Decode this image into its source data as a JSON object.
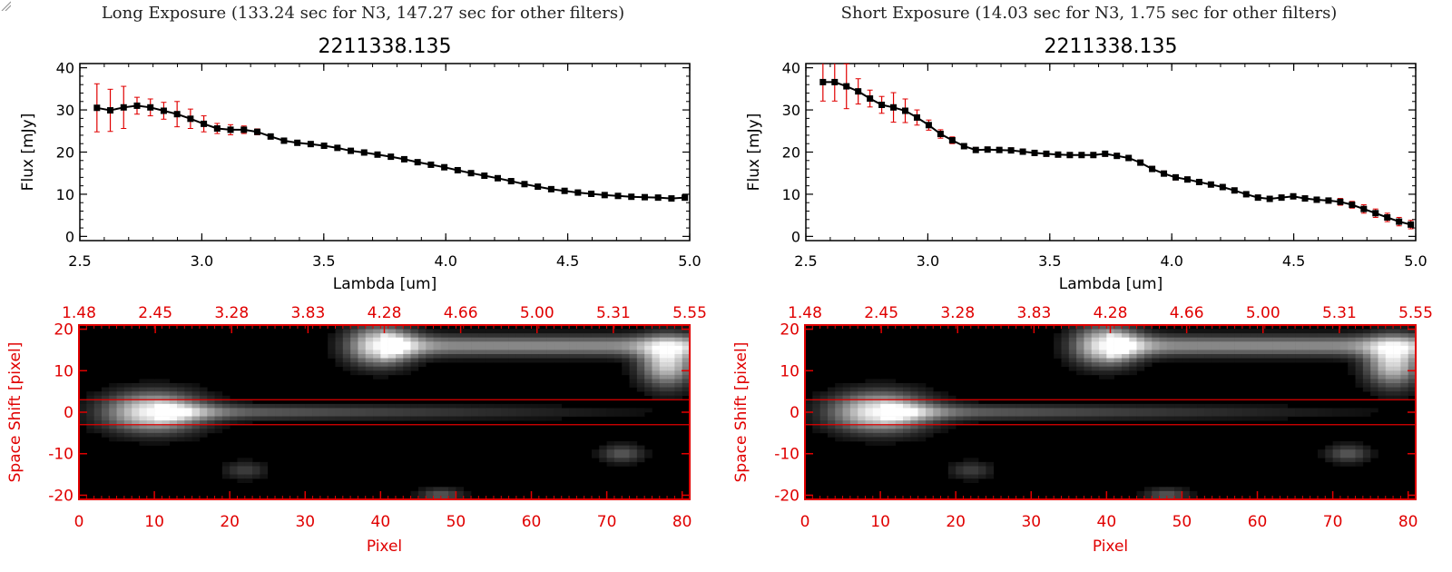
{
  "panels": [
    {
      "id": "left",
      "exposure_title": "Long Exposure (133.24 sec for N3, 147.27 sec for other filters)",
      "plot_title": "2211338.135",
      "spectrum_series": [
        30.5,
        29.9,
        30.6,
        31.0,
        30.6,
        29.8,
        29.0,
        27.9,
        26.7,
        25.6,
        25.3,
        25.3,
        24.8,
        23.7,
        22.7,
        22.2,
        21.9,
        21.5,
        21.0,
        20.3,
        19.9,
        19.4,
        18.9,
        18.3,
        17.6,
        17.0,
        16.4,
        15.7,
        15.0,
        14.4,
        13.8,
        13.1,
        12.4,
        11.8,
        11.2,
        10.8,
        10.4,
        10.1,
        9.8,
        9.6,
        9.4,
        9.3,
        9.2,
        9.0,
        9.2
      ],
      "spectrum_errors": [
        5.7,
        5.0,
        5.0,
        2.0,
        2.0,
        2.0,
        3.0,
        2.3,
        1.9,
        1.2,
        1.2,
        0.9,
        0.7,
        0.6,
        0.5,
        0.4,
        0.4,
        0.4,
        0.4,
        0.4,
        0.4,
        0.4,
        0.4,
        0.4,
        0.4,
        0.4,
        0.4,
        0.4,
        0.4,
        0.4,
        0.4,
        0.4,
        0.4,
        0.4,
        0.4,
        0.4,
        0.4,
        0.4,
        0.4,
        0.4,
        0.4,
        0.4,
        0.4,
        0.4,
        0.4
      ],
      "image_sources": [
        {
          "x": 10,
          "y": 0,
          "sx": 4.5,
          "sy": 3.2,
          "amp": 1.0
        },
        {
          "x": 40,
          "y": 16,
          "sx": 3.0,
          "sy": 3.2,
          "amp": 1.0
        },
        {
          "x": 78,
          "y": 12,
          "sx": 2.5,
          "sy": 4.0,
          "amp": 0.85
        },
        {
          "x": 72,
          "y": -10,
          "sx": 2.0,
          "sy": 1.5,
          "amp": 0.35
        },
        {
          "x": 48,
          "y": -20,
          "sx": 2.0,
          "sy": 1.2,
          "amp": 0.35
        },
        {
          "x": 22,
          "y": -14,
          "sx": 2.0,
          "sy": 1.5,
          "amp": 0.25
        }
      ]
    },
    {
      "id": "right",
      "exposure_title": "Short Exposure (14.03 sec for N3, 1.75 sec for other filters)",
      "plot_title": "2211338.135",
      "spectrum_series": [
        36.6,
        36.6,
        35.6,
        34.4,
        32.7,
        31.2,
        30.6,
        29.8,
        28.2,
        26.4,
        24.3,
        22.8,
        21.4,
        20.5,
        20.6,
        20.5,
        20.4,
        20.1,
        19.8,
        19.6,
        19.4,
        19.3,
        19.3,
        19.3,
        19.6,
        19.1,
        18.6,
        17.5,
        16.0,
        14.9,
        14.0,
        13.5,
        12.9,
        12.3,
        11.7,
        10.9,
        10.0,
        9.2,
        8.9,
        9.2,
        9.5,
        9.0,
        8.7,
        8.5,
        8.2,
        7.5,
        6.5,
        5.5,
        4.5,
        3.5,
        2.8
      ],
      "spectrum_errors": [
        4.5,
        4.5,
        5.3,
        3.0,
        2.0,
        2.0,
        3.5,
        2.8,
        1.8,
        1.2,
        1.0,
        0.8,
        0.6,
        0.6,
        0.6,
        0.6,
        0.6,
        0.6,
        0.6,
        0.6,
        0.6,
        0.6,
        0.6,
        0.6,
        0.6,
        0.6,
        0.6,
        0.6,
        0.6,
        0.6,
        0.6,
        0.6,
        0.6,
        0.6,
        0.6,
        0.6,
        0.6,
        0.6,
        0.6,
        0.6,
        0.6,
        0.6,
        0.6,
        0.6,
        0.8,
        0.8,
        1.0,
        1.0,
        1.0,
        1.0,
        1.0
      ],
      "image_sources": [
        {
          "x": 10,
          "y": 0,
          "sx": 4.5,
          "sy": 3.2,
          "amp": 1.0
        },
        {
          "x": 40,
          "y": 16,
          "sx": 3.0,
          "sy": 3.2,
          "amp": 1.0
        },
        {
          "x": 78,
          "y": 12,
          "sx": 2.5,
          "sy": 4.0,
          "amp": 0.85
        },
        {
          "x": 72,
          "y": -10,
          "sx": 2.0,
          "sy": 1.5,
          "amp": 0.35
        },
        {
          "x": 48,
          "y": -20,
          "sx": 2.0,
          "sy": 1.2,
          "amp": 0.35
        },
        {
          "x": 22,
          "y": -14,
          "sx": 2.0,
          "sy": 1.5,
          "amp": 0.25
        }
      ]
    }
  ],
  "chart_data": [
    {
      "type": "line",
      "title": "2211338.135",
      "xlabel": "Lambda [um]",
      "ylabel": "Flux [mJy]",
      "xlim": [
        2.5,
        5.0
      ],
      "ylim": [
        -1,
        41
      ],
      "x_ticks": [
        "2.5",
        "3.0",
        "3.5",
        "4.0",
        "4.5",
        "5.0"
      ],
      "y_ticks": [
        "0",
        "10",
        "20",
        "30",
        "40"
      ],
      "series_color": "#000000",
      "error_color": "#e00000"
    },
    {
      "type": "heatmap",
      "xlabel": "Pixel",
      "ylabel": "Space Shift [pixel]",
      "xlim": [
        0,
        81
      ],
      "ylim": [
        -21,
        21
      ],
      "x_ticks": [
        "0",
        "10",
        "20",
        "30",
        "40",
        "50",
        "60",
        "70",
        "80"
      ],
      "y_ticks": [
        "-20",
        "-10",
        "0",
        "10",
        "20"
      ],
      "top_axis_ticks": [
        "1.48",
        "2.45",
        "3.28",
        "3.83",
        "4.28",
        "4.66",
        "5.00",
        "5.31",
        "5.55"
      ],
      "extraction_window": [
        -3,
        3
      ],
      "axis_color": "#e00000"
    }
  ]
}
